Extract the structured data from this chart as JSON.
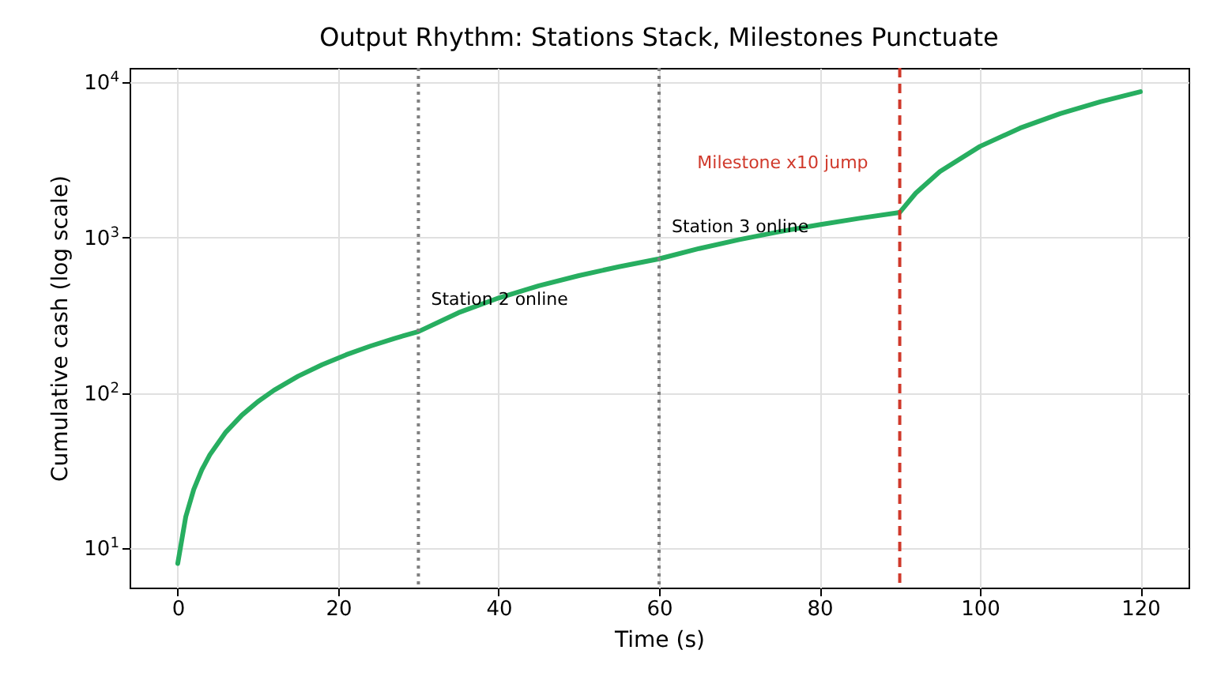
{
  "chart_data": {
    "type": "line",
    "title": "Output Rhythm: Stations Stack, Milestones Punctuate",
    "xlabel": "Time (s)",
    "ylabel": "Cumulative cash (log scale)",
    "x": [
      0,
      1,
      2,
      3,
      4,
      6,
      8,
      10,
      12,
      15,
      18,
      21,
      24,
      27,
      30,
      35,
      40,
      45,
      50,
      55,
      60,
      65,
      70,
      75,
      80,
      85,
      90,
      92,
      95,
      100,
      105,
      110,
      115,
      120
    ],
    "series": [
      {
        "color": "#27ae60",
        "values": [
          8,
          16,
          24,
          32,
          40,
          56,
          72,
          88,
          104,
          128,
          152,
          176,
          200,
          224,
          248,
          328,
          408,
          488,
          568,
          648,
          728,
          848,
          968,
          1088,
          1208,
          1328,
          1448,
          1928,
          2648,
          3848,
          5048,
          6248,
          7448,
          8648
        ]
      }
    ],
    "log": "y",
    "xlim": [
      -6,
      126
    ],
    "ylim": [
      5.6,
      12300
    ],
    "xticks": [
      0,
      20,
      40,
      60,
      80,
      100,
      120
    ],
    "yticks": [
      {
        "value": 10,
        "label": "10$^{1}$"
      },
      {
        "value": 100,
        "label": "10$^{2}$"
      },
      {
        "value": 1000,
        "label": "10$^{3}$"
      },
      {
        "value": 10000,
        "label": "10$^{4}$"
      }
    ],
    "grid": true,
    "line_style": "solid",
    "marker": "none",
    "ref_lines": [
      {
        "axis": "x",
        "value": 30,
        "color": "#808080",
        "line_style": "dotted",
        "label": "Station 2 online"
      },
      {
        "axis": "x",
        "value": 60,
        "color": "#808080",
        "line_style": "dotted",
        "label": "Station 3 online"
      },
      {
        "axis": "x",
        "value": 90,
        "color": "#d0392b",
        "line_style": "dashed",
        "label": "Milestone x10 jump"
      }
    ]
  }
}
